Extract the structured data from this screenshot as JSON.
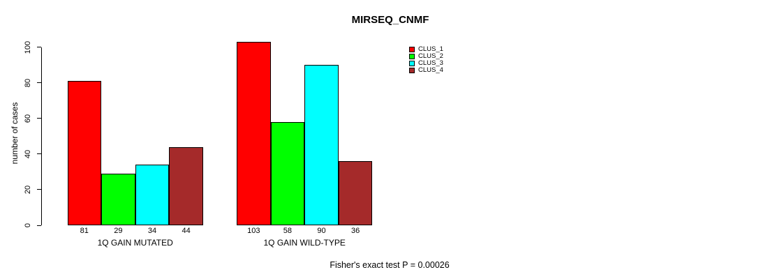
{
  "title": "MIRSEQ_CNMF",
  "ylabel": "number of cases",
  "footer": "Fisher's exact test P = 0.00026",
  "legend": {
    "items": [
      {
        "label": "CLUS_1",
        "color": "#FF0000"
      },
      {
        "label": "CLUS_2",
        "color": "#00FF00"
      },
      {
        "label": "CLUS_3",
        "color": "#00FFFF"
      },
      {
        "label": "CLUS_4",
        "color": "#A52A2A"
      }
    ]
  },
  "chart_data": {
    "type": "bar",
    "title": "MIRSEQ_CNMF",
    "xlabel": "",
    "ylabel": "number of cases",
    "ylim": [
      0,
      100
    ],
    "yticks": [
      0,
      20,
      40,
      60,
      80,
      100
    ],
    "grid": false,
    "legend_position": "right",
    "groups": [
      "1Q GAIN MUTATED",
      "1Q GAIN WILD-TYPE"
    ],
    "series": [
      {
        "name": "CLUS_1",
        "color": "#FF0000",
        "values": [
          81,
          103
        ]
      },
      {
        "name": "CLUS_2",
        "color": "#00FF00",
        "values": [
          29,
          58
        ]
      },
      {
        "name": "CLUS_3",
        "color": "#00FFFF",
        "values": [
          34,
          90
        ]
      },
      {
        "name": "CLUS_4",
        "color": "#A52A2A",
        "values": [
          44,
          36
        ]
      }
    ],
    "bar_labels": [
      [
        81,
        29,
        34,
        44
      ],
      [
        103,
        58,
        90,
        36
      ]
    ],
    "annotation": "Fisher's exact test P = 0.00026"
  }
}
